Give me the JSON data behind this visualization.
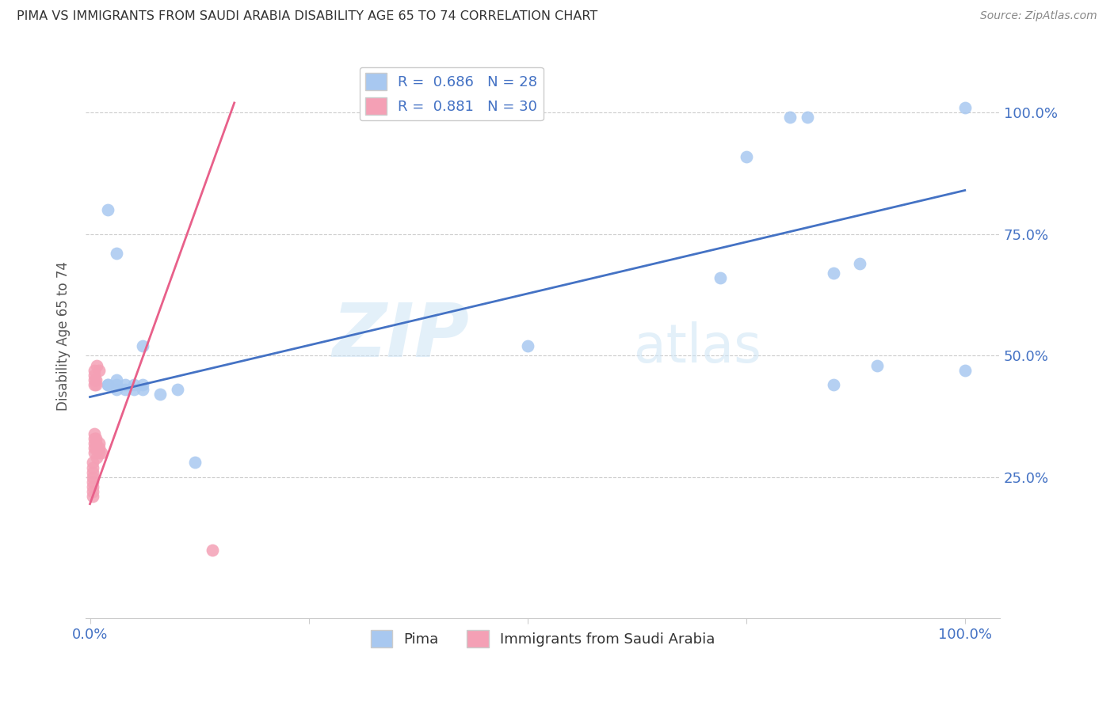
{
  "title": "PIMA VS IMMIGRANTS FROM SAUDI ARABIA DISABILITY AGE 65 TO 74 CORRELATION CHART",
  "source": "Source: ZipAtlas.com",
  "ylabel": "Disability Age 65 to 74",
  "blue_R": 0.686,
  "blue_N": 28,
  "pink_R": 0.881,
  "pink_N": 30,
  "blue_color": "#a8c8f0",
  "pink_color": "#f4a0b5",
  "blue_line_color": "#4472c4",
  "pink_line_color": "#e8608a",
  "legend_label_blue": "Pima",
  "legend_label_pink": "Immigrants from Saudi Arabia",
  "watermark_zip": "ZIP",
  "watermark_atlas": "atlas",
  "blue_scatter_x": [
    0.02,
    0.03,
    0.04,
    0.05,
    0.06,
    0.02,
    0.03,
    0.06,
    0.1,
    0.12,
    0.5,
    0.72,
    0.75,
    0.8,
    0.82,
    0.85,
    0.9,
    1.0
  ],
  "blue_scatter_y": [
    0.44,
    0.43,
    0.44,
    0.43,
    0.43,
    0.8,
    0.71,
    0.52,
    0.43,
    0.28,
    0.52,
    0.66,
    0.91,
    0.99,
    0.99,
    0.67,
    0.48,
    1.01
  ],
  "blue_scatter2_x": [
    0.02,
    0.03,
    0.03,
    0.04,
    0.05,
    0.06,
    0.08,
    0.85,
    0.88,
    1.0
  ],
  "blue_scatter2_y": [
    0.44,
    0.44,
    0.45,
    0.43,
    0.44,
    0.44,
    0.42,
    0.44,
    0.69,
    0.47
  ],
  "pink_scatter_x": [
    0.003,
    0.003,
    0.003,
    0.003,
    0.003,
    0.003,
    0.003,
    0.003,
    0.005,
    0.005,
    0.005,
    0.005,
    0.005,
    0.005,
    0.005,
    0.005,
    0.005,
    0.007,
    0.007,
    0.007,
    0.007,
    0.007,
    0.008,
    0.008,
    0.01,
    0.01,
    0.01,
    0.01,
    0.013,
    0.14
  ],
  "pink_scatter_y": [
    0.21,
    0.22,
    0.23,
    0.24,
    0.25,
    0.26,
    0.27,
    0.28,
    0.3,
    0.31,
    0.32,
    0.33,
    0.34,
    0.44,
    0.45,
    0.46,
    0.47,
    0.31,
    0.32,
    0.33,
    0.44,
    0.45,
    0.29,
    0.48,
    0.3,
    0.31,
    0.32,
    0.47,
    0.3,
    0.1
  ],
  "blue_line_x0": 0.0,
  "blue_line_y0": 0.415,
  "blue_line_x1": 1.0,
  "blue_line_y1": 0.84,
  "pink_line_x0": 0.0,
  "pink_line_y0": 0.195,
  "pink_line_x1": 0.165,
  "pink_line_y1": 1.02,
  "xlim": [
    -0.005,
    1.04
  ],
  "ylim": [
    -0.04,
    1.12
  ],
  "x_ticks": [
    0.0,
    0.25,
    0.5,
    0.75,
    1.0
  ],
  "x_tick_labels": [
    "0.0%",
    "",
    "",
    "",
    "100.0%"
  ],
  "y_ticks": [
    0.25,
    0.5,
    0.75,
    1.0
  ],
  "y_tick_labels_right": [
    "25.0%",
    "50.0%",
    "75.0%",
    "100.0%"
  ]
}
